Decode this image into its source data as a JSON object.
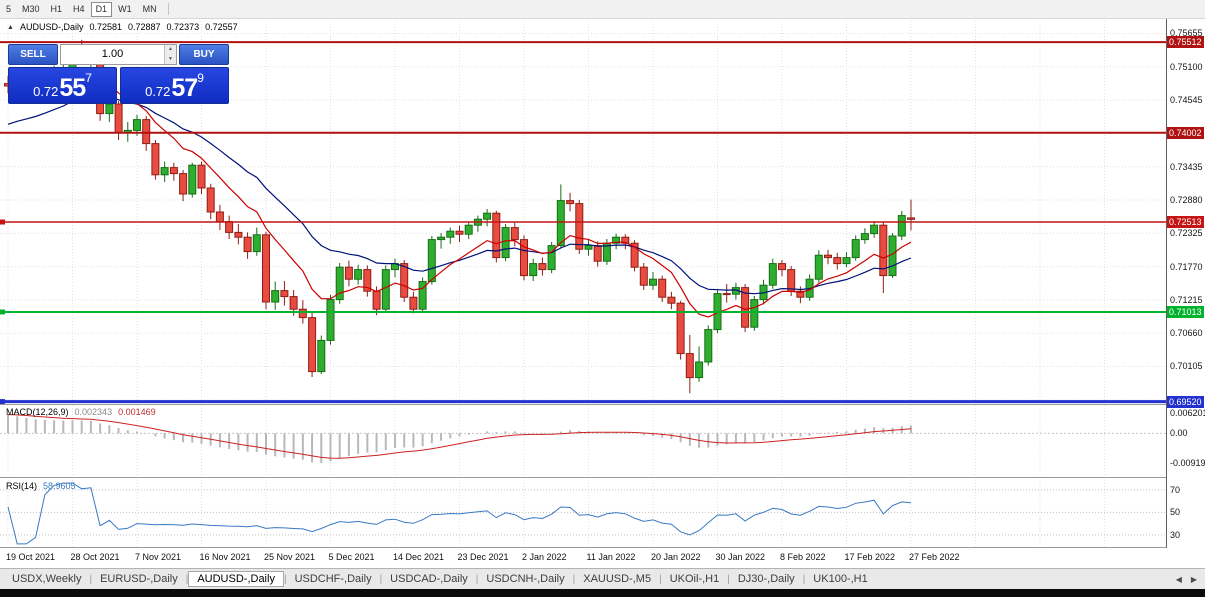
{
  "toolbar": {
    "timeframes": [
      "5",
      "M30",
      "H1",
      "H4",
      "D1",
      "W1",
      "MN"
    ],
    "active": "D1"
  },
  "header": {
    "collapse_icon": "▲",
    "symbol_period": "AUDUSD-,Daily",
    "open": "0.72581",
    "high": "0.72887",
    "low": "0.72373",
    "close": "0.72557"
  },
  "trade_panel": {
    "sell_label": "SELL",
    "buy_label": "BUY",
    "volume": "1.00",
    "spin_up_icon": "▲",
    "spin_down_icon": "▼",
    "sell_price": {
      "base": "0.72",
      "big": "55",
      "sup": "7"
    },
    "buy_price": {
      "base": "0.72",
      "big": "57",
      "sup": "9"
    }
  },
  "price_axis": {
    "labels": [
      {
        "text": "0.75655",
        "value": 0.75655
      },
      {
        "text": "0.75100",
        "value": 0.751
      },
      {
        "text": "0.74545",
        "value": 0.74545
      },
      {
        "text": "0.73435",
        "value": 0.73435
      },
      {
        "text": "0.72880",
        "value": 0.7288
      },
      {
        "text": "0.72325",
        "value": 0.72325
      },
      {
        "text": "0.71770",
        "value": 0.7177
      },
      {
        "text": "0.71215",
        "value": 0.71215
      },
      {
        "text": "0.70660",
        "value": 0.7066
      },
      {
        "text": "0.70105",
        "value": 0.70105
      }
    ]
  },
  "levels": [
    {
      "label": "0.75512",
      "price": 0.75512,
      "color": "#b01212",
      "width": 2,
      "handle": false
    },
    {
      "label": "0.74002",
      "price": 0.74002,
      "color": "#b01212",
      "width": 2,
      "handle": false
    },
    {
      "label": "0.72513",
      "price": 0.72513,
      "color": "#c41414",
      "width": 1.4,
      "handle": true
    },
    {
      "label": "0.71013",
      "price": 0.71013,
      "color": "#00b32c",
      "width": 2,
      "handle": true
    },
    {
      "label": "0.69520",
      "price": 0.6952,
      "color": "#2231cf",
      "width": 3,
      "handle": true
    }
  ],
  "macd": {
    "title": "MACD(12,26,9)",
    "value_main": "0.002343",
    "value_signal": "0.001469",
    "axis_labels": [
      {
        "text": "0.006201",
        "value": 0.006201
      },
      {
        "text": "0.00",
        "value": 0
      },
      {
        "text": "-0.00919",
        "value": -0.00919
      }
    ]
  },
  "rsi": {
    "title": "RSI(14)",
    "value": "58.9605",
    "axis_labels": [
      {
        "text": "70",
        "value": 70
      },
      {
        "text": "50",
        "value": 50
      },
      {
        "text": "30",
        "value": 30
      }
    ]
  },
  "time_axis": {
    "labels": [
      "19 Oct 2021",
      "28 Oct 2021",
      "7 Nov 2021",
      "16 Nov 2021",
      "25 Nov 2021",
      "5 Dec 2021",
      "14 Dec 2021",
      "23 Dec 2021",
      "2 Jan 2022",
      "11 Jan 2022",
      "20 Jan 2022",
      "30 Jan 2022",
      "8 Feb 2022",
      "17 Feb 2022",
      "27 Feb 2022"
    ]
  },
  "tabs": {
    "items": [
      "USDX,Weekly",
      "EURUSD-,Daily",
      "AUDUSD-,Daily",
      "USDCHF-,Daily",
      "USDCAD-,Daily",
      "USDCNH-,Daily",
      "XAUUSD-,M5",
      "UKOil-,H1",
      "DJ30-,Daily",
      "UK100-,H1"
    ],
    "active": "AUDUSD-,Daily",
    "scroll_left_icon": "◀",
    "scroll_right_icon": "▶"
  },
  "colors": {
    "candle_up": "#2eae2e",
    "candle_up_border": "#156e15",
    "candle_down": "#e84b3f",
    "candle_down_border": "#8f1d14",
    "macd_hist": "#b8b8b8",
    "macd_signal": "#cc2222",
    "rsi_line": "#3a78c3",
    "grid": "#e0e0e0",
    "separator": "#9b9b9b",
    "button_blue": "#2a53c3",
    "price_box_blue": "#0e2cc0"
  },
  "chart_data": {
    "type": "candlestick",
    "symbol": "AUDUSD-",
    "timeframe": "Daily",
    "ohlc_current": {
      "open": 0.72581,
      "high": 0.72887,
      "low": 0.72373,
      "close": 0.72557
    },
    "ylim_main": [
      0.6948,
      0.75913
    ],
    "grid_prices": [
      0.75655,
      0.751,
      0.74545,
      0.7399,
      0.73435,
      0.7288,
      0.72325,
      0.7177,
      0.71215,
      0.7066,
      0.70105,
      0.6955
    ],
    "ma_fast": {
      "period": 10,
      "seed": 0.7452,
      "color": "#cc0000"
    },
    "ma_slow": {
      "period": 22,
      "seed": 0.7408,
      "color": "#00127a"
    },
    "macd": {
      "fast": 12,
      "slow": 26,
      "signal": 9,
      "seeds": {
        "ema12": 0.748,
        "ema26": 0.7418,
        "signal": 0.0058
      },
      "ylim": [
        -0.0125,
        0.0078
      ],
      "current_main": 0.002343,
      "current_signal": 0.001469
    },
    "rsi": {
      "period": 14,
      "current": 58.9605,
      "ylim": [
        21,
        77
      ],
      "levels": [
        70,
        50,
        30
      ]
    },
    "candles": [
      [
        0.7482,
        0.7495,
        0.7466,
        0.7478
      ],
      [
        0.7478,
        0.749,
        0.7462,
        0.7472
      ],
      [
        0.7472,
        0.748,
        0.7453,
        0.7465
      ],
      [
        0.7465,
        0.7482,
        0.7457,
        0.747
      ],
      [
        0.747,
        0.7498,
        0.7465,
        0.749
      ],
      [
        0.749,
        0.7512,
        0.7482,
        0.7502
      ],
      [
        0.7502,
        0.7518,
        0.749,
        0.7508
      ],
      [
        0.7508,
        0.7546,
        0.75,
        0.7536
      ],
      [
        0.7536,
        0.7555,
        0.7513,
        0.752
      ],
      [
        0.752,
        0.7535,
        0.7508,
        0.7523
      ],
      [
        0.7523,
        0.7528,
        0.742,
        0.7432
      ],
      [
        0.7432,
        0.7456,
        0.7418,
        0.7448
      ],
      [
        0.7448,
        0.7453,
        0.7388,
        0.74
      ],
      [
        0.74,
        0.7418,
        0.7385,
        0.7404
      ],
      [
        0.7404,
        0.743,
        0.7395,
        0.7422
      ],
      [
        0.7422,
        0.7428,
        0.737,
        0.7382
      ],
      [
        0.7382,
        0.7388,
        0.7322,
        0.733
      ],
      [
        0.733,
        0.7352,
        0.7318,
        0.7342
      ],
      [
        0.7342,
        0.735,
        0.732,
        0.7332
      ],
      [
        0.7332,
        0.7338,
        0.7286,
        0.7298
      ],
      [
        0.7298,
        0.735,
        0.7292,
        0.7346
      ],
      [
        0.7346,
        0.7352,
        0.7298,
        0.7308
      ],
      [
        0.7308,
        0.7315,
        0.7256,
        0.7268
      ],
      [
        0.7268,
        0.728,
        0.7238,
        0.7252
      ],
      [
        0.7252,
        0.7262,
        0.7223,
        0.7234
      ],
      [
        0.7234,
        0.7248,
        0.7214,
        0.7226
      ],
      [
        0.7226,
        0.7234,
        0.719,
        0.7202
      ],
      [
        0.7202,
        0.7242,
        0.7195,
        0.723
      ],
      [
        0.723,
        0.7235,
        0.7106,
        0.7118
      ],
      [
        0.7118,
        0.7152,
        0.7105,
        0.7137
      ],
      [
        0.7137,
        0.7153,
        0.7112,
        0.7127
      ],
      [
        0.7127,
        0.7138,
        0.7095,
        0.7106
      ],
      [
        0.7106,
        0.7121,
        0.7082,
        0.7092
      ],
      [
        0.7092,
        0.7103,
        0.6993,
        0.7002
      ],
      [
        0.7002,
        0.7062,
        0.6998,
        0.7054
      ],
      [
        0.7054,
        0.713,
        0.7047,
        0.7122
      ],
      [
        0.7122,
        0.7183,
        0.7115,
        0.7176
      ],
      [
        0.7176,
        0.7187,
        0.7144,
        0.7156
      ],
      [
        0.7156,
        0.718,
        0.7147,
        0.7172
      ],
      [
        0.7172,
        0.7179,
        0.7127,
        0.7136
      ],
      [
        0.7136,
        0.7144,
        0.7096,
        0.7106
      ],
      [
        0.7106,
        0.7179,
        0.71,
        0.7172
      ],
      [
        0.7172,
        0.719,
        0.7159,
        0.7182
      ],
      [
        0.7182,
        0.7188,
        0.7118,
        0.7126
      ],
      [
        0.7126,
        0.7135,
        0.7099,
        0.7106
      ],
      [
        0.7106,
        0.7159,
        0.7101,
        0.7152
      ],
      [
        0.7152,
        0.7228,
        0.7147,
        0.7222
      ],
      [
        0.7222,
        0.7233,
        0.7207,
        0.7226
      ],
      [
        0.7226,
        0.7242,
        0.7215,
        0.7236
      ],
      [
        0.7236,
        0.7245,
        0.7218,
        0.7231
      ],
      [
        0.7231,
        0.7252,
        0.7223,
        0.7246
      ],
      [
        0.7246,
        0.7262,
        0.7235,
        0.7256
      ],
      [
        0.7256,
        0.7273,
        0.7244,
        0.7266
      ],
      [
        0.7266,
        0.727,
        0.7184,
        0.7192
      ],
      [
        0.7192,
        0.7248,
        0.7186,
        0.7242
      ],
      [
        0.7242,
        0.725,
        0.7211,
        0.7222
      ],
      [
        0.7222,
        0.7229,
        0.7154,
        0.7162
      ],
      [
        0.7162,
        0.719,
        0.7153,
        0.7182
      ],
      [
        0.7182,
        0.7192,
        0.7162,
        0.7172
      ],
      [
        0.7172,
        0.7218,
        0.7166,
        0.7212
      ],
      [
        0.7212,
        0.7314,
        0.7208,
        0.7287
      ],
      [
        0.7287,
        0.73,
        0.7269,
        0.7282
      ],
      [
        0.7282,
        0.7288,
        0.7198,
        0.7206
      ],
      [
        0.7206,
        0.7223,
        0.7195,
        0.7212
      ],
      [
        0.7212,
        0.7219,
        0.7177,
        0.7186
      ],
      [
        0.7186,
        0.7223,
        0.718,
        0.7216
      ],
      [
        0.7216,
        0.7232,
        0.7206,
        0.7226
      ],
      [
        0.7226,
        0.7231,
        0.7206,
        0.7216
      ],
      [
        0.7216,
        0.7221,
        0.7169,
        0.7176
      ],
      [
        0.7176,
        0.7183,
        0.7138,
        0.7146
      ],
      [
        0.7146,
        0.7168,
        0.7138,
        0.7156
      ],
      [
        0.7156,
        0.7162,
        0.7118,
        0.7126
      ],
      [
        0.7126,
        0.7135,
        0.7106,
        0.7116
      ],
      [
        0.7116,
        0.712,
        0.7022,
        0.7032
      ],
      [
        0.7032,
        0.7063,
        0.6966,
        0.6992
      ],
      [
        0.6992,
        0.7044,
        0.6985,
        0.7018
      ],
      [
        0.7018,
        0.7079,
        0.7012,
        0.7072
      ],
      [
        0.7072,
        0.7139,
        0.7066,
        0.7132
      ],
      [
        0.7132,
        0.7148,
        0.7117,
        0.7131
      ],
      [
        0.7131,
        0.715,
        0.7122,
        0.7142
      ],
      [
        0.7142,
        0.7148,
        0.7068,
        0.7076
      ],
      [
        0.7076,
        0.7128,
        0.707,
        0.7122
      ],
      [
        0.7122,
        0.7155,
        0.7114,
        0.7146
      ],
      [
        0.7146,
        0.719,
        0.714,
        0.7182
      ],
      [
        0.7182,
        0.7188,
        0.7161,
        0.7172
      ],
      [
        0.7172,
        0.7178,
        0.7128,
        0.7136
      ],
      [
        0.7136,
        0.7144,
        0.7116,
        0.7126
      ],
      [
        0.7126,
        0.7164,
        0.712,
        0.7156
      ],
      [
        0.7156,
        0.7204,
        0.715,
        0.7196
      ],
      [
        0.7196,
        0.7205,
        0.7181,
        0.7192
      ],
      [
        0.7192,
        0.72,
        0.7172,
        0.7182
      ],
      [
        0.7182,
        0.7201,
        0.7176,
        0.7192
      ],
      [
        0.7192,
        0.7229,
        0.7187,
        0.7222
      ],
      [
        0.7222,
        0.7241,
        0.7215,
        0.7232
      ],
      [
        0.7232,
        0.7253,
        0.7225,
        0.7246
      ],
      [
        0.7246,
        0.7251,
        0.7133,
        0.7162
      ],
      [
        0.7162,
        0.7233,
        0.7158,
        0.7228
      ],
      [
        0.7228,
        0.727,
        0.7221,
        0.7262
      ],
      [
        0.72581,
        0.72887,
        0.72373,
        0.72557
      ]
    ]
  }
}
